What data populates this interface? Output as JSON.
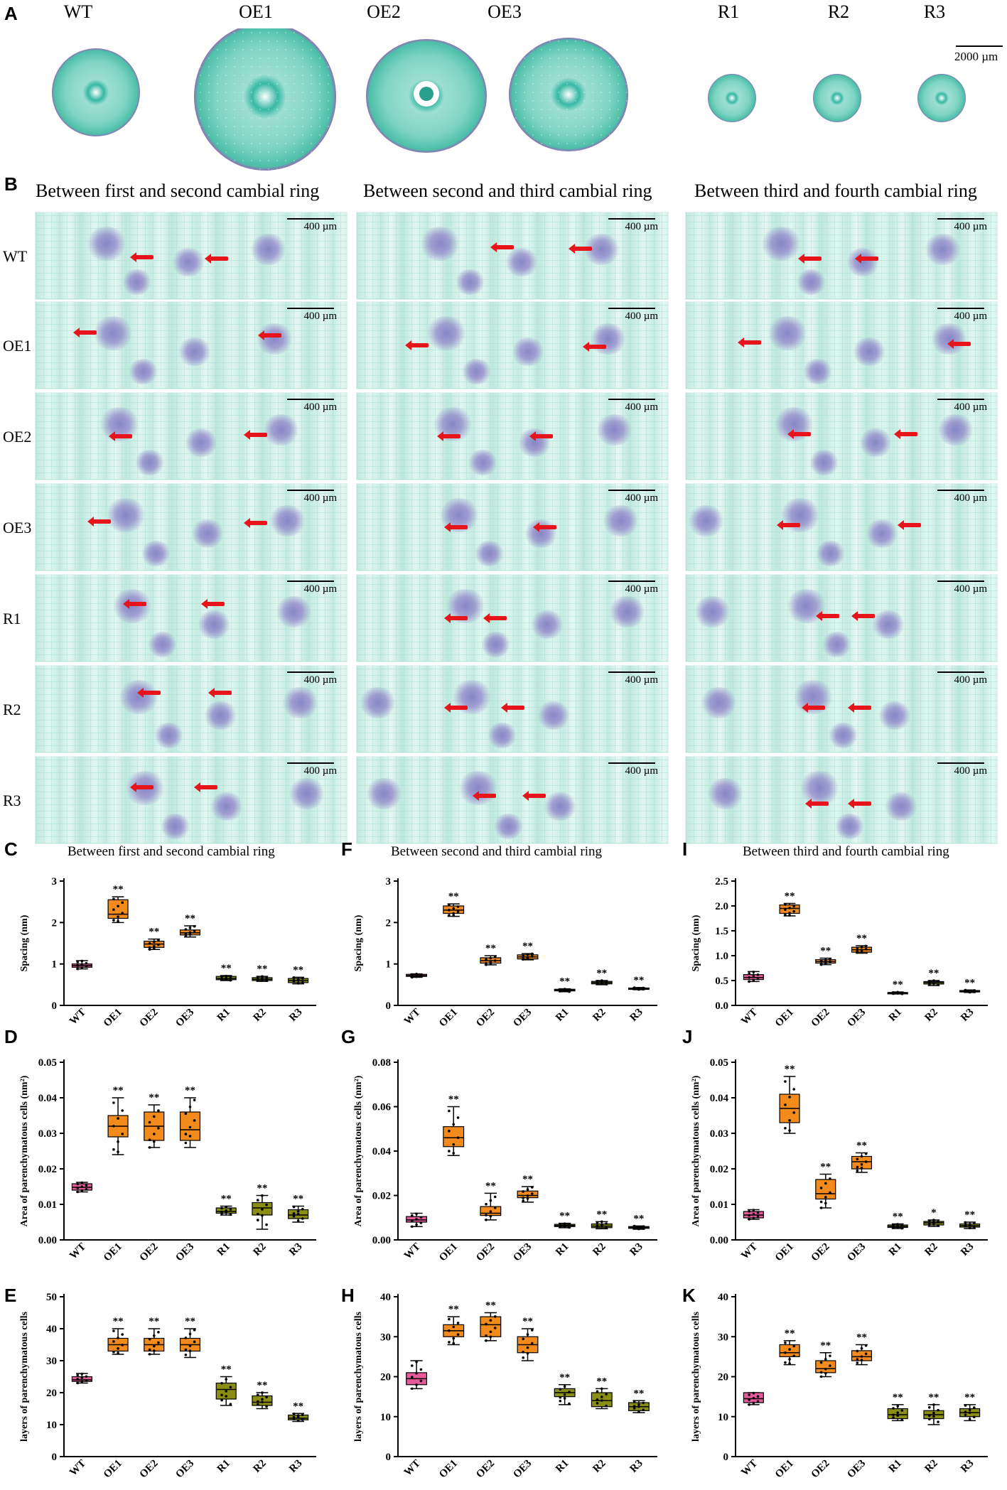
{
  "panel_labels": {
    "A": "A",
    "B": "B",
    "C": "C",
    "D": "D",
    "E": "E",
    "F": "F",
    "G": "G",
    "H": "H",
    "I": "I",
    "J": "J",
    "K": "K"
  },
  "panel_a": {
    "genotypes": [
      "WT",
      "OE1",
      "OE2",
      "OE3",
      "R1",
      "R2",
      "R3"
    ],
    "scalebar": "2000 µm"
  },
  "panel_b": {
    "section_titles": [
      "Between first and second cambial ring",
      "Between second and third cambial ring",
      "Between third and fourth cambial ring"
    ],
    "row_labels": [
      "WT",
      "OE1",
      "OE2",
      "OE3",
      "R1",
      "R2",
      "R3"
    ],
    "scalebar": "400 µm"
  },
  "colors": {
    "wt": "#e45a9a",
    "oe": "#f28a1c",
    "r": "#8a8f14",
    "stain": "#2bb39b",
    "arrow": "#e8141b"
  },
  "chart_data": [
    {
      "id": "C",
      "type": "box",
      "title": "Between first and second cambial ring",
      "ylabel": "Spacing (nm)",
      "ylim": [
        0,
        3
      ],
      "yticks": [
        "0",
        "1",
        "2",
        "3"
      ],
      "tick_values": [
        0,
        1,
        2,
        3
      ],
      "categories": [
        "WT",
        "OE1",
        "OE2",
        "OE3",
        "R1",
        "R2",
        "R3"
      ],
      "boxes": [
        {
          "min": 0.88,
          "q1": 0.92,
          "median": 0.96,
          "q3": 1.0,
          "max": 1.08,
          "sig": ""
        },
        {
          "min": 2.0,
          "q1": 2.1,
          "median": 2.2,
          "q3": 2.55,
          "max": 2.62,
          "sig": "**"
        },
        {
          "min": 1.35,
          "q1": 1.4,
          "median": 1.48,
          "q3": 1.55,
          "max": 1.6,
          "sig": "**"
        },
        {
          "min": 1.65,
          "q1": 1.7,
          "median": 1.75,
          "q3": 1.82,
          "max": 1.92,
          "sig": "**"
        },
        {
          "min": 0.6,
          "q1": 0.62,
          "median": 0.65,
          "q3": 0.7,
          "max": 0.72,
          "sig": "**"
        },
        {
          "min": 0.58,
          "q1": 0.6,
          "median": 0.63,
          "q3": 0.67,
          "max": 0.7,
          "sig": "**"
        },
        {
          "min": 0.52,
          "q1": 0.55,
          "median": 0.6,
          "q3": 0.65,
          "max": 0.68,
          "sig": "**"
        }
      ]
    },
    {
      "id": "D",
      "type": "box",
      "ylabel": "Area of parenchymatous cells (nm²)",
      "ylim": [
        0,
        0.05
      ],
      "yticks": [
        "0.00",
        "0.01",
        "0.02",
        "0.03",
        "0.04",
        "0.05"
      ],
      "tick_values": [
        0,
        0.01,
        0.02,
        0.03,
        0.04,
        0.05
      ],
      "categories": [
        "WT",
        "OE1",
        "OE2",
        "OE3",
        "R1",
        "R2",
        "R3"
      ],
      "boxes": [
        {
          "min": 0.0135,
          "q1": 0.014,
          "median": 0.0148,
          "q3": 0.0158,
          "max": 0.0162,
          "sig": ""
        },
        {
          "min": 0.024,
          "q1": 0.029,
          "median": 0.032,
          "q3": 0.035,
          "max": 0.04,
          "sig": "**"
        },
        {
          "min": 0.026,
          "q1": 0.028,
          "median": 0.032,
          "q3": 0.036,
          "max": 0.038,
          "sig": "**"
        },
        {
          "min": 0.026,
          "q1": 0.028,
          "median": 0.031,
          "q3": 0.036,
          "max": 0.04,
          "sig": "**"
        },
        {
          "min": 0.007,
          "q1": 0.0075,
          "median": 0.008,
          "q3": 0.009,
          "max": 0.0095,
          "sig": "**"
        },
        {
          "min": 0.003,
          "q1": 0.007,
          "median": 0.009,
          "q3": 0.0105,
          "max": 0.0125,
          "sig": "**"
        },
        {
          "min": 0.005,
          "q1": 0.006,
          "median": 0.007,
          "q3": 0.0085,
          "max": 0.0095,
          "sig": "**"
        }
      ]
    },
    {
      "id": "E",
      "type": "box",
      "ylabel": "layers of parenchymatous cells",
      "ylim": [
        0,
        50
      ],
      "yticks": [
        "0",
        "10",
        "20",
        "30",
        "40",
        "50"
      ],
      "tick_values": [
        0,
        10,
        20,
        30,
        40,
        50
      ],
      "categories": [
        "WT",
        "OE1",
        "OE2",
        "OE3",
        "R1",
        "R2",
        "R3"
      ],
      "boxes": [
        {
          "min": 23,
          "q1": 23.5,
          "median": 24,
          "q3": 25,
          "max": 26,
          "sig": ""
        },
        {
          "min": 32,
          "q1": 33,
          "median": 35,
          "q3": 37,
          "max": 40,
          "sig": "**"
        },
        {
          "min": 32,
          "q1": 33,
          "median": 35,
          "q3": 37,
          "max": 40,
          "sig": "**"
        },
        {
          "min": 31,
          "q1": 33,
          "median": 35,
          "q3": 37,
          "max": 40,
          "sig": "**"
        },
        {
          "min": 16,
          "q1": 18,
          "median": 21,
          "q3": 23,
          "max": 25,
          "sig": "**"
        },
        {
          "min": 15,
          "q1": 16,
          "median": 17,
          "q3": 19,
          "max": 20,
          "sig": "**"
        },
        {
          "min": 11,
          "q1": 11.5,
          "median": 12,
          "q3": 13,
          "max": 13.5,
          "sig": "**"
        }
      ]
    },
    {
      "id": "F",
      "type": "box",
      "title": "Between second and third cambial ring",
      "ylabel": "Spacing (nm)",
      "ylim": [
        0,
        3
      ],
      "yticks": [
        "0",
        "1",
        "2",
        "3"
      ],
      "tick_values": [
        0,
        1,
        2,
        3
      ],
      "categories": [
        "WT",
        "OE1",
        "OE2",
        "OE3",
        "R1",
        "R2",
        "R3"
      ],
      "boxes": [
        {
          "min": 0.68,
          "q1": 0.7,
          "median": 0.72,
          "q3": 0.75,
          "max": 0.76,
          "sig": ""
        },
        {
          "min": 2.15,
          "q1": 2.22,
          "median": 2.3,
          "q3": 2.4,
          "max": 2.45,
          "sig": "**"
        },
        {
          "min": 0.98,
          "q1": 1.02,
          "median": 1.08,
          "q3": 1.15,
          "max": 1.2,
          "sig": "**"
        },
        {
          "min": 1.1,
          "q1": 1.12,
          "median": 1.17,
          "q3": 1.22,
          "max": 1.25,
          "sig": "**"
        },
        {
          "min": 0.33,
          "q1": 0.35,
          "median": 0.37,
          "q3": 0.39,
          "max": 0.4,
          "sig": "**"
        },
        {
          "min": 0.5,
          "q1": 0.52,
          "median": 0.55,
          "q3": 0.58,
          "max": 0.6,
          "sig": "**"
        },
        {
          "min": 0.38,
          "q1": 0.39,
          "median": 0.41,
          "q3": 0.42,
          "max": 0.43,
          "sig": "**"
        }
      ]
    },
    {
      "id": "G",
      "type": "box",
      "ylabel": "Area of parenchymatous cells (nm²)",
      "ylim": [
        0,
        0.08
      ],
      "yticks": [
        "0.00",
        "0.02",
        "0.04",
        "0.06",
        "0.08"
      ],
      "tick_values": [
        0,
        0.02,
        0.04,
        0.06,
        0.08
      ],
      "categories": [
        "WT",
        "OE1",
        "OE2",
        "OE3",
        "R1",
        "R2",
        "R3"
      ],
      "boxes": [
        {
          "min": 0.006,
          "q1": 0.008,
          "median": 0.009,
          "q3": 0.0105,
          "max": 0.012,
          "sig": ""
        },
        {
          "min": 0.038,
          "q1": 0.042,
          "median": 0.046,
          "q3": 0.051,
          "max": 0.06,
          "sig": "**"
        },
        {
          "min": 0.009,
          "q1": 0.011,
          "median": 0.012,
          "q3": 0.015,
          "max": 0.021,
          "sig": "**"
        },
        {
          "min": 0.017,
          "q1": 0.019,
          "median": 0.02,
          "q3": 0.022,
          "max": 0.024,
          "sig": "**"
        },
        {
          "min": 0.0055,
          "q1": 0.006,
          "median": 0.0065,
          "q3": 0.007,
          "max": 0.0075,
          "sig": "**"
        },
        {
          "min": 0.005,
          "q1": 0.0055,
          "median": 0.0062,
          "q3": 0.0072,
          "max": 0.0082,
          "sig": "**"
        },
        {
          "min": 0.0048,
          "q1": 0.0052,
          "median": 0.0056,
          "q3": 0.006,
          "max": 0.0063,
          "sig": "**"
        }
      ]
    },
    {
      "id": "H",
      "type": "box",
      "ylabel": "layers of parenchymatous cells",
      "ylim": [
        0,
        40
      ],
      "yticks": [
        "0",
        "10",
        "20",
        "30",
        "40"
      ],
      "tick_values": [
        0,
        10,
        20,
        30,
        40
      ],
      "categories": [
        "WT",
        "OE1",
        "OE2",
        "OE3",
        "R1",
        "R2",
        "R3"
      ],
      "boxes": [
        {
          "min": 17,
          "q1": 18,
          "median": 19.5,
          "q3": 21,
          "max": 24,
          "sig": ""
        },
        {
          "min": 28,
          "q1": 30,
          "median": 31.5,
          "q3": 33,
          "max": 35,
          "sig": "**"
        },
        {
          "min": 29,
          "q1": 30,
          "median": 33,
          "q3": 35,
          "max": 36,
          "sig": "**"
        },
        {
          "min": 24,
          "q1": 26,
          "median": 28,
          "q3": 30,
          "max": 32,
          "sig": "**"
        },
        {
          "min": 13,
          "q1": 15,
          "median": 16,
          "q3": 17,
          "max": 18,
          "sig": "**"
        },
        {
          "min": 12,
          "q1": 12.5,
          "median": 14,
          "q3": 16,
          "max": 17,
          "sig": "**"
        },
        {
          "min": 11,
          "q1": 11.5,
          "median": 12.5,
          "q3": 13.5,
          "max": 14,
          "sig": "**"
        }
      ]
    },
    {
      "id": "I",
      "type": "box",
      "title": "Between third and fourth cambial ring",
      "ylabel": "Spacing (nm)",
      "ylim": [
        0,
        2.5
      ],
      "yticks": [
        "0.0",
        "0.5",
        "1.0",
        "1.5",
        "2.0",
        "2.5"
      ],
      "tick_values": [
        0,
        0.5,
        1.0,
        1.5,
        2.0,
        2.5
      ],
      "categories": [
        "WT",
        "OE1",
        "OE2",
        "OE3",
        "R1",
        "R2",
        "R3"
      ],
      "boxes": [
        {
          "min": 0.48,
          "q1": 0.52,
          "median": 0.56,
          "q3": 0.62,
          "max": 0.68,
          "sig": ""
        },
        {
          "min": 1.8,
          "q1": 1.85,
          "median": 1.95,
          "q3": 2.02,
          "max": 2.05,
          "sig": "**"
        },
        {
          "min": 0.82,
          "q1": 0.85,
          "median": 0.88,
          "q3": 0.92,
          "max": 0.95,
          "sig": "**"
        },
        {
          "min": 1.05,
          "q1": 1.07,
          "median": 1.12,
          "q3": 1.17,
          "max": 1.2,
          "sig": "**"
        },
        {
          "min": 0.23,
          "q1": 0.24,
          "median": 0.25,
          "q3": 0.26,
          "max": 0.27,
          "sig": "**"
        },
        {
          "min": 0.4,
          "q1": 0.43,
          "median": 0.46,
          "q3": 0.48,
          "max": 0.5,
          "sig": "**"
        },
        {
          "min": 0.26,
          "q1": 0.27,
          "median": 0.28,
          "q3": 0.3,
          "max": 0.31,
          "sig": "**"
        }
      ]
    },
    {
      "id": "J",
      "type": "box",
      "ylabel": "Area of parenchymatous cells (nm²)",
      "ylim": [
        0,
        0.05
      ],
      "yticks": [
        "0.00",
        "0.01",
        "0.02",
        "0.03",
        "0.04",
        "0.05"
      ],
      "tick_values": [
        0,
        0.01,
        0.02,
        0.03,
        0.04,
        0.05
      ],
      "categories": [
        "WT",
        "OE1",
        "OE2",
        "OE3",
        "R1",
        "R2",
        "R3"
      ],
      "boxes": [
        {
          "min": 0.0058,
          "q1": 0.0062,
          "median": 0.007,
          "q3": 0.008,
          "max": 0.0085,
          "sig": ""
        },
        {
          "min": 0.03,
          "q1": 0.033,
          "median": 0.037,
          "q3": 0.041,
          "max": 0.046,
          "sig": "**"
        },
        {
          "min": 0.009,
          "q1": 0.0115,
          "median": 0.013,
          "q3": 0.017,
          "max": 0.0185,
          "sig": "**"
        },
        {
          "min": 0.019,
          "q1": 0.02,
          "median": 0.022,
          "q3": 0.0235,
          "max": 0.0245,
          "sig": "**"
        },
        {
          "min": 0.0032,
          "q1": 0.0035,
          "median": 0.0038,
          "q3": 0.0042,
          "max": 0.0045,
          "sig": "**"
        },
        {
          "min": 0.0038,
          "q1": 0.0042,
          "median": 0.0048,
          "q3": 0.0052,
          "max": 0.0056,
          "sig": "*"
        },
        {
          "min": 0.0032,
          "q1": 0.0036,
          "median": 0.004,
          "q3": 0.0045,
          "max": 0.005,
          "sig": "**"
        }
      ]
    },
    {
      "id": "K",
      "type": "box",
      "ylabel": "layers of parenchymatous cells",
      "ylim": [
        0,
        40
      ],
      "yticks": [
        "0",
        "10",
        "20",
        "30",
        "40"
      ],
      "tick_values": [
        0,
        10,
        20,
        30,
        40
      ],
      "categories": [
        "WT",
        "OE1",
        "OE2",
        "OE3",
        "R1",
        "R2",
        "R3"
      ],
      "boxes": [
        {
          "min": 13,
          "q1": 13.5,
          "median": 14.5,
          "q3": 16,
          "max": 16,
          "sig": ""
        },
        {
          "min": 23,
          "q1": 25,
          "median": 26,
          "q3": 28,
          "max": 29,
          "sig": "**"
        },
        {
          "min": 20,
          "q1": 21,
          "median": 22,
          "q3": 24,
          "max": 26,
          "sig": "**"
        },
        {
          "min": 23,
          "q1": 24,
          "median": 25,
          "q3": 26.5,
          "max": 28,
          "sig": "**"
        },
        {
          "min": 9,
          "q1": 9.5,
          "median": 10.5,
          "q3": 12,
          "max": 13,
          "sig": "**"
        },
        {
          "min": 8,
          "q1": 9.5,
          "median": 10.5,
          "q3": 11.5,
          "max": 13,
          "sig": "**"
        },
        {
          "min": 9,
          "q1": 10,
          "median": 11,
          "q3": 12,
          "max": 13,
          "sig": "**"
        }
      ]
    }
  ]
}
